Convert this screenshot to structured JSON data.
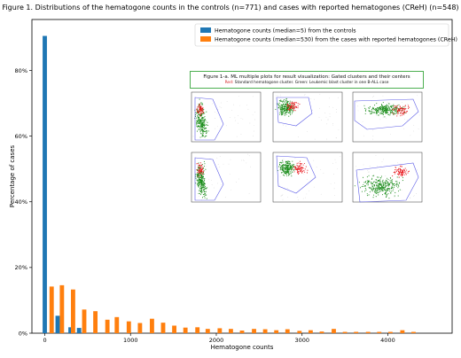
{
  "figure": {
    "title": "Figure 1.  Distributions of the hematogone counts in the controls (n=771) and cases with reported hematogones (CReH) (n=548)"
  },
  "colors": {
    "controls": "#1f77b4",
    "creh": "#ff7f0e",
    "cluster_red": "#e8161b",
    "cluster_green": "#1a8c1a",
    "outline_blue": "#5a5ae6"
  },
  "inset": {
    "title": "Figure 1-a.  ML multiple plots for result visualization:  Gated clusters and their centers",
    "subtitle_red": "Red:",
    "subtitle_rest": "  Standard hematogone cluster. Green:  Leukemic blast cluster in one B-ALL case",
    "panels": [
      {
        "kind": "flare-left"
      },
      {
        "kind": "blob-top"
      },
      {
        "kind": "wide-band"
      },
      {
        "kind": "flare-left"
      },
      {
        "kind": "blob-mid"
      },
      {
        "kind": "wide-low"
      }
    ]
  },
  "chart_data": {
    "type": "bar",
    "xlabel": "Hematogone counts",
    "ylabel": "Percentage of cases",
    "xlim": [
      -150,
      4750
    ],
    "ylim": [
      0,
      0.955
    ],
    "xticks": [
      0,
      1000,
      2000,
      3000,
      4000
    ],
    "yticks": [
      0,
      0.2,
      0.4,
      0.6,
      0.8
    ],
    "ytick_labels": [
      "0%",
      "20%",
      "40%",
      "60%",
      "80%"
    ],
    "legend_position": "top-right",
    "series": [
      {
        "name": "Hematogone counts (median=5) from the controls",
        "color": "#1f77b4",
        "bin_width": 50,
        "x": [
          0,
          150,
          300,
          400
        ],
        "values": [
          0.905,
          0.053,
          0.018,
          0.016
        ]
      },
      {
        "name": "Hematogone counts (median=530) from the cases with reported hematogones (CReH)",
        "color": "#ff7f0e",
        "bin_width": 50,
        "x": [
          80,
          200,
          330,
          460,
          590,
          730,
          840,
          980,
          1110,
          1250,
          1380,
          1510,
          1640,
          1780,
          1900,
          2040,
          2170,
          2300,
          2440,
          2570,
          2700,
          2830,
          2970,
          3100,
          3230,
          3370,
          3500,
          3630,
          3770,
          3900,
          4030,
          4170,
          4300
        ],
        "values": [
          0.142,
          0.146,
          0.133,
          0.072,
          0.067,
          0.041,
          0.049,
          0.036,
          0.031,
          0.044,
          0.032,
          0.023,
          0.017,
          0.018,
          0.013,
          0.015,
          0.013,
          0.008,
          0.013,
          0.012,
          0.009,
          0.012,
          0.007,
          0.009,
          0.005,
          0.013,
          0.004,
          0.004,
          0.004,
          0.004,
          0.004,
          0.009,
          0.004
        ]
      }
    ]
  }
}
